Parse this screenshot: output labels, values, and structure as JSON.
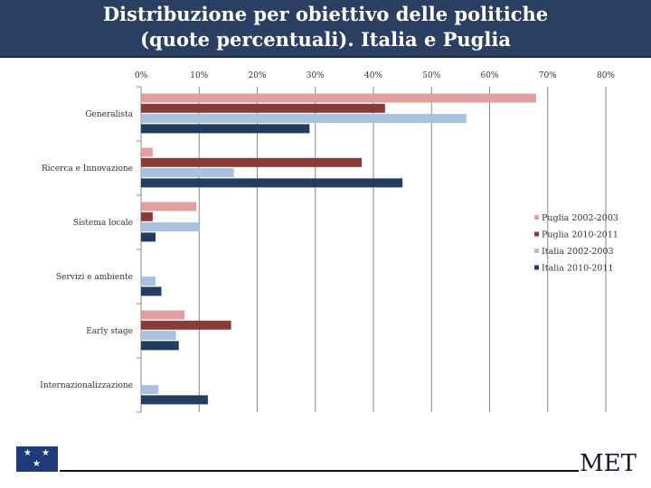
{
  "header": {
    "title_line1": "Distribuzione per obiettivo delle politiche",
    "title_line2": "(quote percentuali). Italia e Puglia"
  },
  "footer": {
    "brand": "MET",
    "flag": "eu-flag-icon"
  },
  "colors": {
    "title_bg": "#2b3f63",
    "puglia_2002": "#dfa0a2",
    "puglia_2010": "#8b3a3a",
    "italia_2002": "#a9c0de",
    "italia_2010": "#243c60"
  },
  "chart_data": {
    "type": "bar",
    "orientation": "horizontal",
    "title": "Distribuzione per obiettivo delle politiche (quote percentuali). Italia e Puglia",
    "categories": [
      "Generalista",
      "Ricerca e Innovazione",
      "Sistema locale",
      "Servizi e ambiente",
      "Early stage",
      "Internazionalizzazione"
    ],
    "series": [
      {
        "name": "Puglia 2002-2003",
        "values": [
          68,
          2,
          9.5,
          0,
          7.5,
          0
        ]
      },
      {
        "name": "Puglia 2010-2011",
        "values": [
          42,
          38,
          2,
          0,
          15.5,
          0
        ]
      },
      {
        "name": "Italia 2002-2003",
        "values": [
          56,
          16,
          10,
          2.5,
          6,
          3
        ]
      },
      {
        "name": "Italia 2010-2011",
        "values": [
          29,
          45,
          2.5,
          3.5,
          6.5,
          11.5
        ]
      }
    ],
    "tick_labels": [
      "0%",
      "10%",
      "20%",
      "30%",
      "40%",
      "50%",
      "60%",
      "70%",
      "80%"
    ],
    "xlim": [
      0,
      80
    ],
    "xlabel": "",
    "ylabel": "",
    "grid": true,
    "legend_position": "right"
  }
}
